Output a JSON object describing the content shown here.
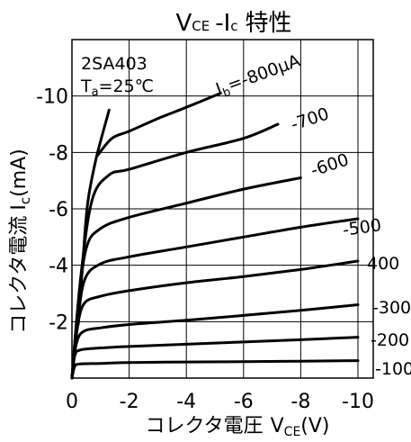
{
  "chart_data": {
    "type": "line",
    "title": {
      "v": "V",
      "ce": "CE",
      "dash": "-",
      "i": "I",
      "c": "c",
      "rest": "特性"
    },
    "xlabel": {
      "prefix": "コレクタ電圧",
      "v": "V",
      "sub": "CE",
      "unit": "(V)"
    },
    "ylabel": {
      "prefix": "コレクタ電流",
      "i": "I",
      "sub": "c",
      "unit": "(mA)"
    },
    "annotation": {
      "device": "2SA403",
      "ta": "T",
      "ta_sub": "a",
      "ta_val": "=25℃"
    },
    "xlim": [
      0,
      -10
    ],
    "ylim": [
      0,
      -12
    ],
    "x_ticks": [
      {
        "value": 0,
        "label": "0"
      },
      {
        "value": -2,
        "label": "-2"
      },
      {
        "value": -4,
        "label": "-4"
      },
      {
        "value": -6,
        "label": "-6"
      },
      {
        "value": -8,
        "label": "-8"
      },
      {
        "value": -10,
        "label": "-10"
      }
    ],
    "y_ticks": [
      {
        "value": -2,
        "label": "-2"
      },
      {
        "value": -4,
        "label": "-4"
      },
      {
        "value": -6,
        "label": "-6"
      },
      {
        "value": -8,
        "label": "-8"
      },
      {
        "value": -10,
        "label": "-10"
      }
    ],
    "grid": true,
    "saturation_line": [
      [
        -0.22,
        -1.9
      ],
      [
        -0.38,
        -4.1
      ],
      [
        -0.55,
        -6.2
      ],
      [
        -0.85,
        -7.8
      ],
      [
        -1.3,
        -9.5
      ]
    ],
    "series": [
      {
        "name": "-100",
        "values": [
          [
            0,
            0
          ],
          [
            -0.1,
            -0.42
          ],
          [
            -0.3,
            -0.5
          ],
          [
            -1,
            -0.52
          ],
          [
            -2,
            -0.55
          ],
          [
            -4,
            -0.57
          ],
          [
            -6,
            -0.58
          ],
          [
            -8,
            -0.6
          ],
          [
            -10,
            -0.62
          ]
        ]
      },
      {
        "name": "-200",
        "values": [
          [
            0,
            0
          ],
          [
            -0.1,
            -0.8
          ],
          [
            -0.3,
            -1.0
          ],
          [
            -1,
            -1.07
          ],
          [
            -2,
            -1.12
          ],
          [
            -4,
            -1.2
          ],
          [
            -6,
            -1.28
          ],
          [
            -8,
            -1.36
          ],
          [
            -10,
            -1.45
          ]
        ]
      },
      {
        "name": "-300",
        "values": [
          [
            0,
            0
          ],
          [
            -0.15,
            -1.2
          ],
          [
            -0.4,
            -1.65
          ],
          [
            -1,
            -1.78
          ],
          [
            -2,
            -1.9
          ],
          [
            -4,
            -2.05
          ],
          [
            -6,
            -2.22
          ],
          [
            -8,
            -2.4
          ],
          [
            -10,
            -2.6
          ]
        ]
      },
      {
        "name": "400",
        "values": [
          [
            0,
            0
          ],
          [
            -0.15,
            -1.5
          ],
          [
            -0.4,
            -2.6
          ],
          [
            -1,
            -2.9
          ],
          [
            -2,
            -3.1
          ],
          [
            -4,
            -3.38
          ],
          [
            -6,
            -3.6
          ],
          [
            -8,
            -3.85
          ],
          [
            -10,
            -4.15
          ]
        ]
      },
      {
        "name": "-500",
        "values": [
          [
            0,
            0
          ],
          [
            -0.2,
            -2.0
          ],
          [
            -0.45,
            -3.5
          ],
          [
            -1,
            -4.05
          ],
          [
            -2,
            -4.3
          ],
          [
            -4,
            -4.65
          ],
          [
            -6,
            -5.0
          ],
          [
            -8,
            -5.35
          ],
          [
            -10,
            -5.65
          ]
        ]
      },
      {
        "name": "-600",
        "values": [
          [
            0,
            0
          ],
          [
            -0.2,
            -2.4
          ],
          [
            -0.5,
            -4.6
          ],
          [
            -1,
            -5.3
          ],
          [
            -2,
            -5.7
          ],
          [
            -4,
            -6.2
          ],
          [
            -6,
            -6.7
          ],
          [
            -8,
            -7.1
          ]
        ]
      },
      {
        "name": "-700",
        "values": [
          [
            0,
            0
          ],
          [
            -0.3,
            -3.5
          ],
          [
            -0.7,
            -6.3
          ],
          [
            -1.3,
            -7.2
          ],
          [
            -2,
            -7.4
          ],
          [
            -4,
            -8.0
          ],
          [
            -6,
            -8.5
          ],
          [
            -7.2,
            -9.0
          ]
        ]
      },
      {
        "name": "Ib=-800μA",
        "values": [
          [
            -0.9,
            -7.9
          ],
          [
            -1.4,
            -8.5
          ],
          [
            -2,
            -8.75
          ],
          [
            -3,
            -9.2
          ],
          [
            -4,
            -9.6
          ],
          [
            -5.2,
            -10.1
          ]
        ]
      }
    ],
    "curve_labels": [
      "-100",
      "-200",
      "-300",
      "400",
      "-500",
      "-600",
      "-700"
    ],
    "ib_label": {
      "i": "I",
      "sub": "b",
      "rest": "=-800μA"
    }
  }
}
